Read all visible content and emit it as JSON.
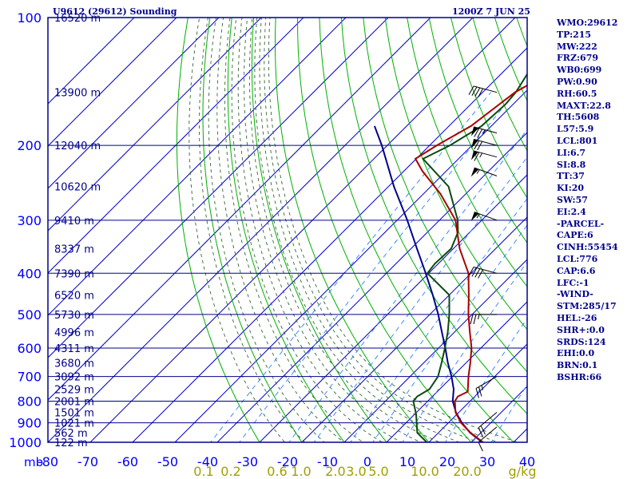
{
  "header": {
    "title": "U9612 (29612) Sounding",
    "time": "1200Z  7 JUN 25"
  },
  "params": [
    "WMO:29612",
    "TP:215",
    "MW:222",
    "FRZ:679",
    "WB0:699",
    "PW:0.90",
    "RH:60.5",
    "MAXT:22.8",
    "TH:5608",
    "L57:5.9",
    "LCL:801",
    "LI:6.7",
    "SI:8.8",
    "TT:37",
    "KI:20",
    "SW:57",
    "EI:2.4",
    "-PARCEL-",
    "CAPE:6",
    "CINH:55454",
    "LCL:776",
    "CAP:6.6",
    "LFC:-1",
    "-WIND-",
    "STM:285/17",
    "HEL:-26",
    "SHR+:0.0",
    "SRDS:124",
    "EHI:0.0",
    "BRN:0.1",
    "BSHR:66"
  ],
  "chart_data": {
    "type": "line",
    "subtype": "skew-t log-p sounding",
    "y_axis": {
      "unit_label": "mb",
      "ticks": [
        100,
        200,
        300,
        400,
        500,
        600,
        700,
        800,
        900,
        1000
      ],
      "scale": "log"
    },
    "x_axis": {
      "ticks": [
        -80,
        -70,
        -60,
        -50,
        -40,
        -30,
        -20,
        -10,
        0,
        10,
        20,
        30,
        40
      ],
      "labels": [
        "-80",
        "-70",
        "-60",
        "-50",
        "-40",
        "-30",
        "-20",
        "-10",
        "0",
        "10",
        "20",
        "30",
        "40"
      ]
    },
    "mixing_ratio_labels": [
      {
        "label": "0.1",
        "value": 0.1
      },
      {
        "label": "0.2",
        "value": 0.2
      },
      {
        "label": "0.6",
        "value": 0.6
      },
      {
        "label": "1.0",
        "value": 1.0
      },
      {
        "label": "2.0",
        "value": 2.0
      },
      {
        "label": "3.0",
        "value": 3.0
      },
      {
        "label": "5.0",
        "value": 5.0
      },
      {
        "label": "10.0",
        "value": 10.0
      },
      {
        "label": "20.0",
        "value": 20.0
      }
    ],
    "mixing_ratio_unit": "g/kg",
    "height_labels": [
      {
        "p": 100,
        "text": "16520 m"
      },
      {
        "p": 150,
        "text": "13900 m"
      },
      {
        "p": 200,
        "text": "12040 m"
      },
      {
        "p": 250,
        "text": "10620 m"
      },
      {
        "p": 300,
        "text": "9410 m"
      },
      {
        "p": 350,
        "text": "8337 m"
      },
      {
        "p": 400,
        "text": "7390 m"
      },
      {
        "p": 450,
        "text": "6520 m"
      },
      {
        "p": 500,
        "text": "5730 m"
      },
      {
        "p": 550,
        "text": "4996 m"
      },
      {
        "p": 600,
        "text": "4311 m"
      },
      {
        "p": 650,
        "text": "3680 m"
      },
      {
        "p": 700,
        "text": "3092 m"
      },
      {
        "p": 750,
        "text": "2529 m"
      },
      {
        "p": 800,
        "text": "2001 m"
      },
      {
        "p": 850,
        "text": "1501 m"
      },
      {
        "p": 900,
        "text": "1021 m"
      },
      {
        "p": 950,
        "text": "562 m"
      },
      {
        "p": 1000,
        "text": "122 m"
      }
    ],
    "temperature": [
      [
        1000,
        22.8
      ],
      [
        950,
        17.6
      ],
      [
        900,
        13.0
      ],
      [
        850,
        9.2
      ],
      [
        800,
        6.4
      ],
      [
        780,
        6.0
      ],
      [
        760,
        7.2
      ],
      [
        700,
        3.8
      ],
      [
        650,
        1.0
      ],
      [
        600,
        -2.2
      ],
      [
        550,
        -6.4
      ],
      [
        500,
        -10.9
      ],
      [
        450,
        -15.4
      ],
      [
        400,
        -20.6
      ],
      [
        350,
        -28.5
      ],
      [
        300,
        -36.2
      ],
      [
        260,
        -46.0
      ],
      [
        230,
        -55.6
      ],
      [
        215,
        -60.2
      ],
      [
        200,
        -58.3
      ],
      [
        180,
        -54.8
      ],
      [
        150,
        -52.4
      ],
      [
        130,
        -47.5
      ],
      [
        110,
        -43.5
      ],
      [
        100,
        -41.5
      ]
    ],
    "dewpoint": [
      [
        1000,
        9.5
      ],
      [
        950,
        5.0
      ],
      [
        900,
        2.5
      ],
      [
        860,
        0.4
      ],
      [
        800,
        -3.4
      ],
      [
        780,
        -3.6
      ],
      [
        750,
        -2.4
      ],
      [
        700,
        -3.4
      ],
      [
        650,
        -5.8
      ],
      [
        600,
        -8.5
      ],
      [
        550,
        -11.6
      ],
      [
        500,
        -15.4
      ],
      [
        450,
        -20.0
      ],
      [
        400,
        -30.3
      ],
      [
        380,
        -30.8
      ],
      [
        350,
        -30.5
      ],
      [
        320,
        -32.8
      ],
      [
        300,
        -35.7
      ],
      [
        250,
        -45.8
      ],
      [
        215,
        -58.4
      ],
      [
        200,
        -55.2
      ],
      [
        180,
        -52.3
      ],
      [
        160,
        -51.8
      ],
      [
        150,
        -52.2
      ],
      [
        130,
        -54.5
      ],
      [
        110,
        -54.4
      ],
      [
        100,
        -51.3
      ]
    ],
    "parcel": [
      [
        1000,
        22.6
      ],
      [
        950,
        17.5
      ],
      [
        900,
        13.2
      ],
      [
        850,
        9.3
      ],
      [
        800,
        5.9
      ],
      [
        750,
        3.3
      ],
      [
        700,
        -0.2
      ],
      [
        650,
        -4.3
      ],
      [
        600,
        -8.4
      ],
      [
        550,
        -13.0
      ],
      [
        500,
        -18.0
      ],
      [
        450,
        -23.9
      ],
      [
        400,
        -30.7
      ],
      [
        350,
        -38.6
      ],
      [
        300,
        -47.6
      ],
      [
        250,
        -58.7
      ],
      [
        200,
        -71.3
      ],
      [
        180,
        -77.6
      ]
    ],
    "winds": [
      {
        "p": 150,
        "dir": 285,
        "kt": 40
      },
      {
        "p": 187,
        "dir": 285,
        "kt": 75
      },
      {
        "p": 200,
        "dir": 285,
        "kt": 70
      },
      {
        "p": 213,
        "dir": 285,
        "kt": 65
      },
      {
        "p": 236,
        "dir": 290,
        "kt": 55
      },
      {
        "p": 300,
        "dir": 290,
        "kt": 55
      },
      {
        "p": 400,
        "dir": 285,
        "kt": 40
      },
      {
        "p": 500,
        "dir": 270,
        "kt": 25
      },
      {
        "p": 700,
        "dir": 240,
        "kt": 25
      },
      {
        "p": 850,
        "dir": 230,
        "kt": 20
      },
      {
        "p": 920,
        "dir": 230,
        "kt": 10
      }
    ]
  },
  "colors": {
    "frame": "#00008b",
    "isobar": "#00008b",
    "isotherm": "#0000cd",
    "dry_adiabat": "#00b000",
    "moist_adiabat": "#336633",
    "mixing_ratio": "#2a7fff",
    "temperature": "#aa0000",
    "dewpoint": "#0a4a10",
    "parcel": "#00008b",
    "label": "#0000ff",
    "height_label": "#00008b",
    "mr_label": "#a0a000"
  }
}
